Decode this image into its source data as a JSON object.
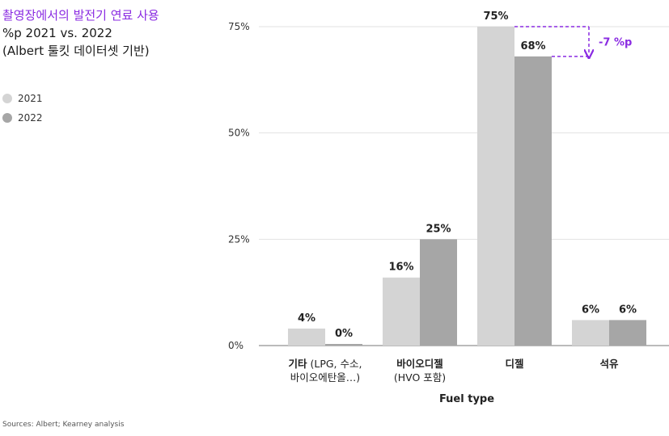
{
  "title": "촬영장에서의 발전기 연료 사용",
  "subtitle_line1": "%p 2021 vs. 2022",
  "subtitle_line2": "(Albert 툴킷 데이터셋 기반)",
  "source": "Sources: Albert; Kearney analysis",
  "colors": {
    "accent": "#8a2be2",
    "series_2021": "#d4d4d4",
    "series_2022": "#a6a6a6"
  },
  "chart_data": {
    "type": "bar",
    "categories": [
      {
        "bold": "기타",
        "rest": " (LPG, 수소,",
        "line2": "바이오에탄올…)"
      },
      {
        "bold": "바이오디젤",
        "rest": "",
        "line2": "(HVO 포함)"
      },
      {
        "bold": "디젤",
        "rest": "",
        "line2": ""
      },
      {
        "bold": "석유",
        "rest": "",
        "line2": ""
      }
    ],
    "series": [
      {
        "name": "2021",
        "values": [
          4,
          16,
          75,
          6
        ],
        "labels": [
          "4%",
          "16%",
          "75%",
          "6%"
        ]
      },
      {
        "name": "2022",
        "values": [
          0,
          25,
          68,
          6
        ],
        "labels": [
          "0%",
          "25%",
          "68%",
          "6%"
        ]
      }
    ],
    "yticks": [
      0,
      25,
      50,
      75
    ],
    "ytick_labels": [
      "0%",
      "25%",
      "50%",
      "75%"
    ],
    "ylim": [
      0,
      80
    ],
    "xlabel": "Fuel type",
    "ylabel": "",
    "grid": true,
    "legend_position": "left",
    "annotation": "-7 %p"
  }
}
